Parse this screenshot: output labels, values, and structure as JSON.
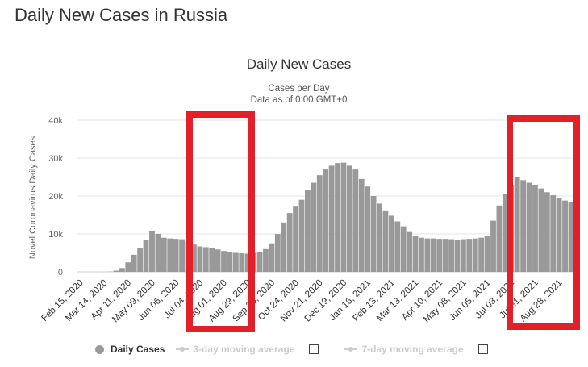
{
  "page": {
    "title": "Daily New Cases in Russia"
  },
  "chart_data": {
    "type": "bar",
    "title": "Daily New Cases",
    "subtitle_lines": [
      "Cases per Day",
      "Data as of 0:00 GMT+0"
    ],
    "xlabel": "",
    "ylabel": "Novel Coronavirus Daily Cases",
    "ylim": [
      0,
      40000
    ],
    "yticks": [
      0,
      10000,
      20000,
      30000,
      40000
    ],
    "ytick_labels": [
      "0",
      "10k",
      "20k",
      "30k",
      "40k"
    ],
    "xtick_labels": [
      "Feb 15, 2020",
      "Mar 14, 2020",
      "Apr 11, 2020",
      "May 09, 2020",
      "Jun 06, 2020",
      "Jul 04, 2020",
      "Aug 01, 2020",
      "Aug 29, 2020",
      "Sep 26, 2020",
      "Oct 24, 2020",
      "Nov 21, 2020",
      "Dec 19, 2020",
      "Jan 16, 2021",
      "Feb 13, 2021",
      "Mar 13, 2021",
      "Apr 10, 2021",
      "May 08, 2021",
      "Jun 05, 2021",
      "Jul 03, 2021",
      "Jul 31, 2021",
      "Aug 28, 2021"
    ],
    "grid": true,
    "bar_color": "#999999",
    "series": [
      {
        "name": "Daily Cases",
        "x": [
          "Feb 15, 2020",
          "Feb 22, 2020",
          "Feb 29, 2020",
          "Mar 07, 2020",
          "Mar 14, 2020",
          "Mar 21, 2020",
          "Mar 28, 2020",
          "Apr 04, 2020",
          "Apr 11, 2020",
          "Apr 18, 2020",
          "Apr 25, 2020",
          "May 02, 2020",
          "May 09, 2020",
          "May 16, 2020",
          "May 23, 2020",
          "May 30, 2020",
          "Jun 06, 2020",
          "Jun 13, 2020",
          "Jun 20, 2020",
          "Jun 27, 2020",
          "Jul 04, 2020",
          "Jul 11, 2020",
          "Jul 18, 2020",
          "Jul 25, 2020",
          "Aug 01, 2020",
          "Aug 08, 2020",
          "Aug 15, 2020",
          "Aug 22, 2020",
          "Aug 29, 2020",
          "Sep 05, 2020",
          "Sep 12, 2020",
          "Sep 19, 2020",
          "Sep 26, 2020",
          "Oct 03, 2020",
          "Oct 10, 2020",
          "Oct 17, 2020",
          "Oct 24, 2020",
          "Oct 31, 2020",
          "Nov 07, 2020",
          "Nov 14, 2020",
          "Nov 21, 2020",
          "Nov 28, 2020",
          "Dec 05, 2020",
          "Dec 12, 2020",
          "Dec 19, 2020",
          "Dec 26, 2020",
          "Jan 02, 2021",
          "Jan 09, 2021",
          "Jan 16, 2021",
          "Jan 23, 2021",
          "Jan 30, 2021",
          "Feb 06, 2021",
          "Feb 13, 2021",
          "Feb 20, 2021",
          "Feb 27, 2021",
          "Mar 06, 2021",
          "Mar 13, 2021",
          "Mar 20, 2021",
          "Mar 27, 2021",
          "Apr 03, 2021",
          "Apr 10, 2021",
          "Apr 17, 2021",
          "Apr 24, 2021",
          "May 01, 2021",
          "May 08, 2021",
          "May 15, 2021",
          "May 22, 2021",
          "May 29, 2021",
          "Jun 05, 2021",
          "Jun 12, 2021",
          "Jun 19, 2021",
          "Jun 26, 2021",
          "Jul 03, 2021",
          "Jul 10, 2021",
          "Jul 17, 2021",
          "Jul 24, 2021",
          "Jul 31, 2021",
          "Aug 07, 2021",
          "Aug 14, 2021",
          "Aug 21, 2021",
          "Aug 28, 2021",
          "Sep 04, 2021",
          "Sep 11, 2021"
        ],
        "values": [
          0,
          0,
          0,
          0,
          0,
          50,
          300,
          1000,
          2500,
          4500,
          6200,
          8500,
          10800,
          10000,
          9000,
          8800,
          8700,
          8600,
          8000,
          7200,
          6700,
          6500,
          6200,
          5900,
          5500,
          5200,
          5000,
          4900,
          4800,
          5000,
          5300,
          6000,
          7500,
          10000,
          13000,
          15500,
          17200,
          19000,
          21500,
          23500,
          25500,
          27000,
          28000,
          28700,
          28800,
          28000,
          27000,
          24500,
          22500,
          20000,
          18000,
          16200,
          14800,
          13300,
          12000,
          10500,
          9500,
          9000,
          8800,
          8800,
          8700,
          8700,
          8600,
          8500,
          8600,
          8700,
          8800,
          9000,
          9500,
          13500,
          17500,
          20500,
          23000,
          25000,
          24200,
          23500,
          23000,
          22000,
          21000,
          20200,
          19500,
          18800,
          18500
        ]
      }
    ],
    "legend": {
      "placement": "bottom-left",
      "items": [
        {
          "label": "Daily Cases",
          "color": "#999999",
          "active": true
        },
        {
          "label": "3-day moving average",
          "color": "#cccccc",
          "active": false
        },
        {
          "label": "7-day moving average",
          "color": "#cccccc",
          "active": false
        }
      ]
    },
    "highlight_color": "#e3202a"
  }
}
